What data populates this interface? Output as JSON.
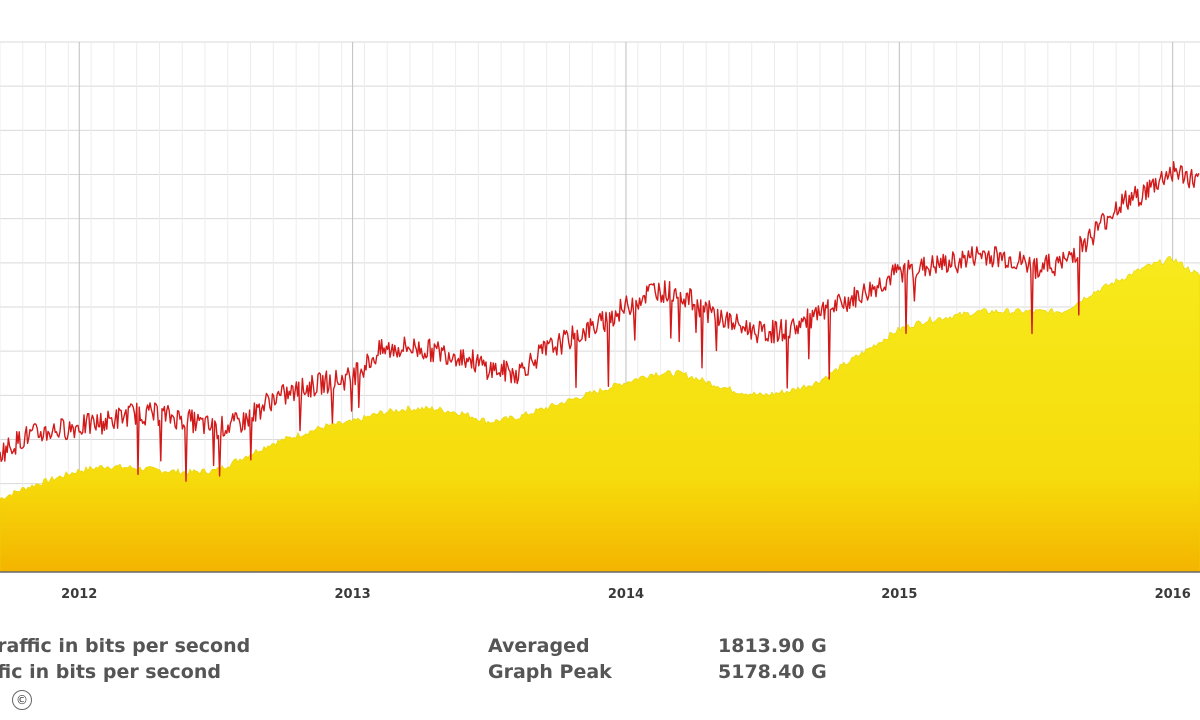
{
  "chart_data": {
    "type": "area",
    "x_tick_labels": [
      "2012",
      "2013",
      "2014",
      "2015",
      "2016"
    ],
    "xlim": [
      2011.71,
      2016.1
    ],
    "ylim": [
      0,
      6000
    ],
    "y_tick_labels_visible": false,
    "grid": true,
    "series": [
      {
        "name": "traffic in bits per second",
        "style": "line",
        "color": "#d21a1a",
        "x": [
          2011.71,
          2011.8,
          2011.9,
          2012.0,
          2012.1,
          2012.2,
          2012.3,
          2012.4,
          2012.5,
          2012.6,
          2012.7,
          2012.8,
          2012.9,
          2013.0,
          2013.1,
          2013.2,
          2013.3,
          2013.4,
          2013.5,
          2013.6,
          2013.7,
          2013.8,
          2013.9,
          2014.0,
          2014.1,
          2014.2,
          2014.3,
          2014.4,
          2014.5,
          2014.6,
          2014.7,
          2014.8,
          2014.9,
          2015.0,
          2015.1,
          2015.2,
          2015.3,
          2015.4,
          2015.5,
          2015.6,
          2015.7,
          2015.8,
          2015.9,
          2016.0,
          2016.1
        ],
        "values": [
          1350,
          1530,
          1600,
          1650,
          1700,
          1800,
          1780,
          1720,
          1620,
          1700,
          1950,
          2050,
          2150,
          2200,
          2500,
          2550,
          2500,
          2450,
          2300,
          2250,
          2500,
          2650,
          2800,
          3000,
          3200,
          3150,
          2950,
          2800,
          2700,
          2750,
          2900,
          3050,
          3200,
          3400,
          3450,
          3500,
          3600,
          3550,
          3450,
          3500,
          3800,
          4150,
          4300,
          4550,
          4400
        ]
      },
      {
        "name": "traffic in bits per second",
        "style": "area",
        "color": "#f5e200",
        "x": [
          2011.71,
          2011.8,
          2011.9,
          2012.0,
          2012.1,
          2012.2,
          2012.3,
          2012.4,
          2012.5,
          2012.6,
          2012.7,
          2012.8,
          2012.9,
          2013.0,
          2013.1,
          2013.2,
          2013.3,
          2013.4,
          2013.5,
          2013.6,
          2013.7,
          2013.8,
          2013.9,
          2014.0,
          2014.1,
          2014.2,
          2014.3,
          2014.4,
          2014.5,
          2014.6,
          2014.7,
          2014.8,
          2014.9,
          2015.0,
          2015.1,
          2015.2,
          2015.3,
          2015.4,
          2015.5,
          2015.6,
          2015.7,
          2015.8,
          2015.9,
          2016.0,
          2016.1
        ],
        "values": [
          830,
          950,
          1050,
          1150,
          1200,
          1180,
          1150,
          1130,
          1150,
          1300,
          1450,
          1550,
          1650,
          1700,
          1800,
          1850,
          1850,
          1800,
          1700,
          1750,
          1850,
          1950,
          2050,
          2150,
          2250,
          2250,
          2150,
          2050,
          2000,
          2050,
          2150,
          2350,
          2550,
          2750,
          2850,
          2900,
          2950,
          2950,
          2950,
          2950,
          3150,
          3300,
          3450,
          3550,
          3350
        ]
      }
    ]
  },
  "legend": {
    "line1": "traffic in bits per second",
    "line2": "ffic in bits per second"
  },
  "stats": {
    "averaged_label": "Averaged",
    "averaged_value": "1813.90 G",
    "peak_label": "Graph Peak",
    "peak_value": "5178.40 G"
  },
  "copyright_symbol": "©"
}
